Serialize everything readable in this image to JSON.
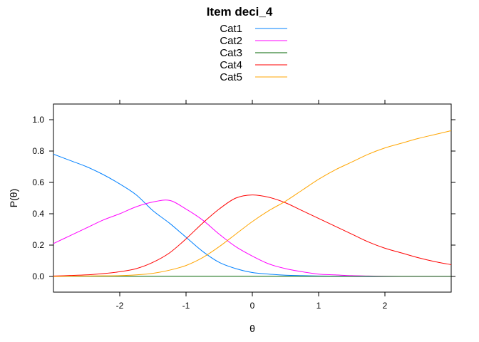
{
  "chart_data": {
    "type": "line",
    "title": "Item deci_4",
    "xlabel": "θ",
    "ylabel": "P(θ)",
    "xlim": [
      -3,
      3
    ],
    "ylim": [
      -0.1,
      1.1
    ],
    "xticks": [
      -2,
      -1,
      0,
      1,
      2
    ],
    "xtick_labels": [
      "-2",
      "-1",
      "0",
      "1",
      "2"
    ],
    "yticks": [
      0,
      0.2,
      0.4,
      0.6,
      0.8,
      1.0
    ],
    "ytick_labels": [
      "0.0",
      "0.2",
      "0.4",
      "0.6",
      "0.8",
      "1.0"
    ],
    "grid": false,
    "legend_position": "top-center",
    "x": [
      -3,
      -2.75,
      -2.5,
      -2.25,
      -2,
      -1.75,
      -1.5,
      -1.25,
      -1,
      -0.75,
      -0.5,
      -0.25,
      0,
      0.25,
      0.5,
      0.75,
      1,
      1.25,
      1.5,
      1.75,
      2,
      2.25,
      2.5,
      2.75,
      3
    ],
    "series": [
      {
        "name": "Cat1",
        "color": "#0080ff",
        "values": [
          0.78,
          0.74,
          0.7,
          0.65,
          0.59,
          0.52,
          0.42,
          0.34,
          0.25,
          0.16,
          0.09,
          0.05,
          0.025,
          0.015,
          0.008,
          0.005,
          0.003,
          0.002,
          0.001,
          0,
          0,
          0,
          0,
          0,
          0
        ]
      },
      {
        "name": "Cat2",
        "color": "#ff00ff",
        "values": [
          0.21,
          0.26,
          0.31,
          0.36,
          0.4,
          0.445,
          0.475,
          0.485,
          0.43,
          0.36,
          0.27,
          0.19,
          0.13,
          0.08,
          0.05,
          0.03,
          0.015,
          0.01,
          0.005,
          0.003,
          0.001,
          0,
          0,
          0,
          0
        ]
      },
      {
        "name": "Cat3",
        "color": "#006400",
        "values": [
          0.001,
          0.001,
          0.001,
          0.001,
          0.001,
          0.001,
          0.001,
          0.001,
          0.001,
          0.001,
          0.001,
          0.001,
          0.001,
          0.001,
          0.001,
          0.001,
          0.001,
          0.001,
          0.001,
          0.001,
          0.0005,
          0.0005,
          0.0005,
          0.0005,
          0.0005
        ]
      },
      {
        "name": "Cat4",
        "color": "#ff0000",
        "values": [
          0.003,
          0.006,
          0.01,
          0.018,
          0.03,
          0.05,
          0.09,
          0.15,
          0.24,
          0.34,
          0.43,
          0.5,
          0.52,
          0.505,
          0.47,
          0.42,
          0.37,
          0.32,
          0.27,
          0.22,
          0.18,
          0.15,
          0.12,
          0.095,
          0.075
        ]
      },
      {
        "name": "Cat5",
        "color": "#ffa500",
        "values": [
          0,
          0.002,
          0.003,
          0.004,
          0.005,
          0.01,
          0.02,
          0.04,
          0.07,
          0.12,
          0.19,
          0.27,
          0.35,
          0.42,
          0.48,
          0.55,
          0.62,
          0.68,
          0.73,
          0.78,
          0.82,
          0.85,
          0.88,
          0.905,
          0.93
        ]
      }
    ]
  }
}
